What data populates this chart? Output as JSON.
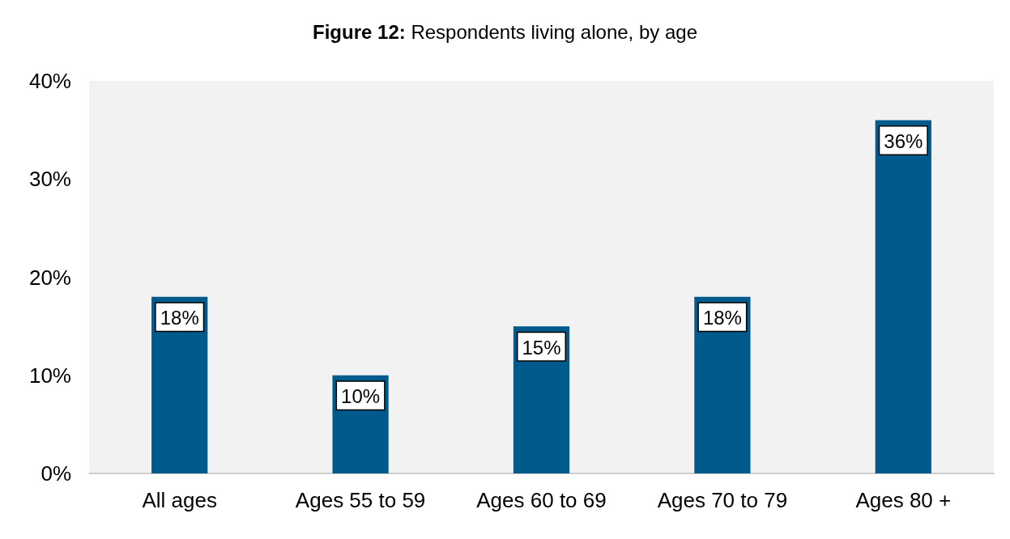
{
  "chart_data": {
    "type": "bar",
    "title": "Figure 12: Respondents living alone, by age",
    "categories": [
      "All ages",
      "Ages 55 to 59",
      "Ages 60 to 69",
      "Ages 70 to 79",
      "Ages 80 +"
    ],
    "values": [
      18,
      10,
      15,
      18,
      36
    ],
    "value_labels": [
      "18%",
      "10%",
      "15%",
      "18%",
      "36%"
    ],
    "color": "#005a8c",
    "ylim": [
      0,
      40
    ],
    "yticks": [
      {
        "value": 0,
        "label": "0%"
      },
      {
        "value": 10,
        "label": "10%"
      },
      {
        "value": 20,
        "label": "20%"
      },
      {
        "value": 30,
        "label": "30%"
      },
      {
        "value": 40,
        "label": "40%"
      }
    ],
    "grid": false
  }
}
